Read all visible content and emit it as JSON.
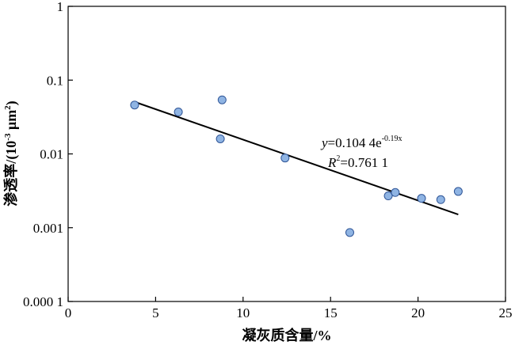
{
  "chart_data": {
    "type": "scatter",
    "xlabel": "凝灰质含量/%",
    "ylabel": {
      "main": "渗透率/(10",
      "exp": "-3",
      "unit": " μm",
      "unit_exp": "2",
      "close": ")"
    },
    "x_ticks": [
      "0",
      "5",
      "10",
      "15",
      "20",
      "25"
    ],
    "y_ticks": [
      "0.000 1",
      "0.001",
      "0.01",
      "0.1",
      "1"
    ],
    "xlim": [
      0,
      25
    ],
    "ylim": [
      0.0001,
      1
    ],
    "y_scale": "log",
    "grid": false,
    "points": [
      {
        "x": 3.8,
        "y": 0.046
      },
      {
        "x": 6.3,
        "y": 0.037
      },
      {
        "x": 8.7,
        "y": 0.016
      },
      {
        "x": 8.8,
        "y": 0.054
      },
      {
        "x": 12.4,
        "y": 0.0088
      },
      {
        "x": 16.1,
        "y": 0.00086
      },
      {
        "x": 18.3,
        "y": 0.0027
      },
      {
        "x": 18.7,
        "y": 0.003
      },
      {
        "x": 20.2,
        "y": 0.0025
      },
      {
        "x": 21.3,
        "y": 0.0024
      },
      {
        "x": 22.3,
        "y": 0.0031
      }
    ],
    "trendline": {
      "type": "exponential",
      "a": 0.1044,
      "b": -0.19,
      "x_range": [
        3.8,
        22.3
      ]
    },
    "annotation": {
      "eq_var": "y",
      "eq_text": "=0.104 4e",
      "eq_exp": "-0.19x",
      "r2_var": "R",
      "r2_sup": "2",
      "r2_text": "=0.761 1"
    },
    "colors": {
      "marker_fill": "#8fb4e3",
      "marker_stroke": "#2f5597",
      "line": "#000000"
    }
  }
}
